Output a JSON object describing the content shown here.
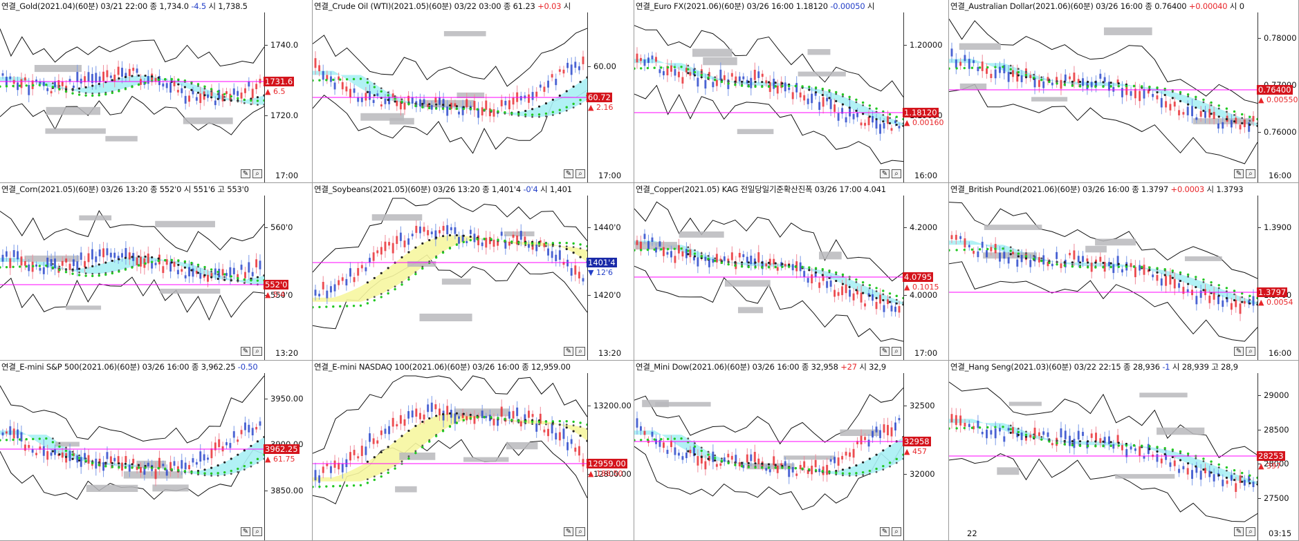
{
  "colors": {
    "up": "#e8262a",
    "down": "#2440c8",
    "magenta": "#ff00ff",
    "cloud_cyan": "#a8f0f4",
    "cloud_yellow": "#f6f6a0",
    "green": "#22c822",
    "gray_box": "#b8b8bc"
  },
  "panels": [
    {
      "id": "gold",
      "title": "연결_Gold(2021.04)(60분) 03/21 22:00",
      "close_text": "종 1,734.0",
      "chg": "-4.5",
      "chg_dir": "down",
      "extra": "시 1,738.5",
      "ticks": [
        "1740.0",
        "1720.0"
      ],
      "badge": "1731.6",
      "badge_dir": "up",
      "badge_chg": "6.5",
      "time": "17:00",
      "trend": "flat",
      "cloud": "cyan"
    },
    {
      "id": "crude",
      "title": "연결_Crude Oil (WTI)(2021.05)(60분) 03/22 03:00",
      "close_text": "종 61.23",
      "chg": "+0.03",
      "chg_dir": "up",
      "extra": "시",
      "ticks": [
        "60.00"
      ],
      "badge": "60.72",
      "badge_dir": "up",
      "badge_chg": "2.16",
      "time": "17:00",
      "trend": "dip",
      "cloud": "cyan"
    },
    {
      "id": "eurofx",
      "title": "연결_Euro FX(2021.06)(60분) 03/26 16:00",
      "close_text": "1.18120",
      "chg": "-0.00050",
      "chg_dir": "down",
      "extra": "시",
      "ticks": [
        "1.20000",
        "1.19000"
      ],
      "badge": "1.18120",
      "badge_dir": "up",
      "badge_chg": "0.00160",
      "time": "16:00",
      "trend": "down",
      "cloud": "cyan"
    },
    {
      "id": "aud",
      "title": "연결_Australian Dollar(2021.06)(60분) 03/26 16:00",
      "close_text": "종 0.76400",
      "chg": "+0.00040",
      "chg_dir": "up",
      "extra": "시 0",
      "ticks": [
        "0.78000",
        "0.77000",
        "0.76000"
      ],
      "badge": "0.76400",
      "badge_dir": "up",
      "badge_chg": "0.00550",
      "time": "16:00",
      "trend": "down",
      "cloud": "cyan"
    },
    {
      "id": "corn",
      "title": "연결_Corn(2021.05)(60분) 03/26 13:20",
      "close_text": "종 552'0",
      "chg": "",
      "chg_dir": "up",
      "extra": "시 551'6 고 553'0",
      "ticks": [
        "560'0",
        "550'0"
      ],
      "badge": "552'0",
      "badge_dir": "up",
      "badge_chg": "5'4",
      "time": "13:20",
      "trend": "flat",
      "cloud": "cyan"
    },
    {
      "id": "soybeans",
      "title": "연결_Soybeans(2021.05)(60분) 03/26 13:20",
      "close_text": "종 1,401'4",
      "chg": "-0'4",
      "chg_dir": "down",
      "extra": "시 1,401",
      "ticks": [
        "1440'0",
        "1420'0"
      ],
      "badge": "1401'4",
      "badge_dir": "down",
      "badge_chg": "12'6",
      "time": "13:20",
      "trend": "updown",
      "cloud": "yellow"
    },
    {
      "id": "copper",
      "title": "연결_Copper(2021.05) KAG 전일당일기준확산진폭 03/26 17:00 4.041",
      "close_text": "",
      "chg": "",
      "chg_dir": "up",
      "extra": "",
      "ticks": [
        "4.2000",
        "4.0000"
      ],
      "badge": "4.0795",
      "badge_dir": "up",
      "badge_chg": "0.1015",
      "time": "17:00",
      "trend": "down",
      "cloud": "cyan"
    },
    {
      "id": "gbp",
      "title": "연결_British Pound(2021.06)(60분) 03/26 16:00",
      "close_text": "종 1.3797",
      "chg": "+0.0003",
      "chg_dir": "up",
      "extra": "시 1.3793",
      "ticks": [
        "1.3900",
        "1.3700"
      ],
      "badge": "1.3797",
      "badge_dir": "up",
      "badge_chg": "0.0054",
      "time": "16:00",
      "trend": "down",
      "cloud": "cyan"
    },
    {
      "id": "sp500",
      "title": "연결_E-mini S&P 500(2021.06)(60분) 03/26 16:00",
      "close_text": "종 3,962.25",
      "chg": "-0.50",
      "chg_dir": "down",
      "extra": "",
      "ticks": [
        "3950.00",
        "3900.00",
        "3850.00"
      ],
      "badge": "3962.25",
      "badge_dir": "up",
      "badge_chg": "61.75",
      "time": "",
      "trend": "dip",
      "cloud": "cyan"
    },
    {
      "id": "nasdaq",
      "title": "연결_E-mini NASDAQ 100(2021.06)(60분) 03/26 16:00",
      "close_text": "종 12,959.00",
      "chg": "",
      "chg_dir": "up",
      "extra": "",
      "ticks": [
        "13200.00",
        "12800.00"
      ],
      "badge": "12959.00",
      "badge_dir": "up",
      "badge_chg": "188.50",
      "time": "",
      "trend": "updown",
      "cloud": "yellow"
    },
    {
      "id": "minidow",
      "title": "연결_Mini Dow(2021.06)(60분) 03/26 16:00",
      "close_text": "종 32,958",
      "chg": "+27",
      "chg_dir": "up",
      "extra": "시 32,9",
      "ticks": [
        "32500",
        "32000"
      ],
      "badge": "32958",
      "badge_dir": "up",
      "badge_chg": "457",
      "time": "",
      "trend": "dip",
      "cloud": "cyan"
    },
    {
      "id": "hangseng",
      "title": "연결_Hang Seng(2021.03)(60분) 03/22 22:15",
      "close_text": "종 28,936",
      "chg": "-1",
      "chg_dir": "down",
      "extra": "시 28,939 고 28,9",
      "ticks": [
        "29000",
        "28500",
        "28000",
        "27500"
      ],
      "badge": "28253",
      "badge_dir": "up",
      "badge_chg": "397",
      "time": "03:15",
      "trend": "down",
      "cloud": "cyan",
      "xlabel": "22"
    }
  ]
}
